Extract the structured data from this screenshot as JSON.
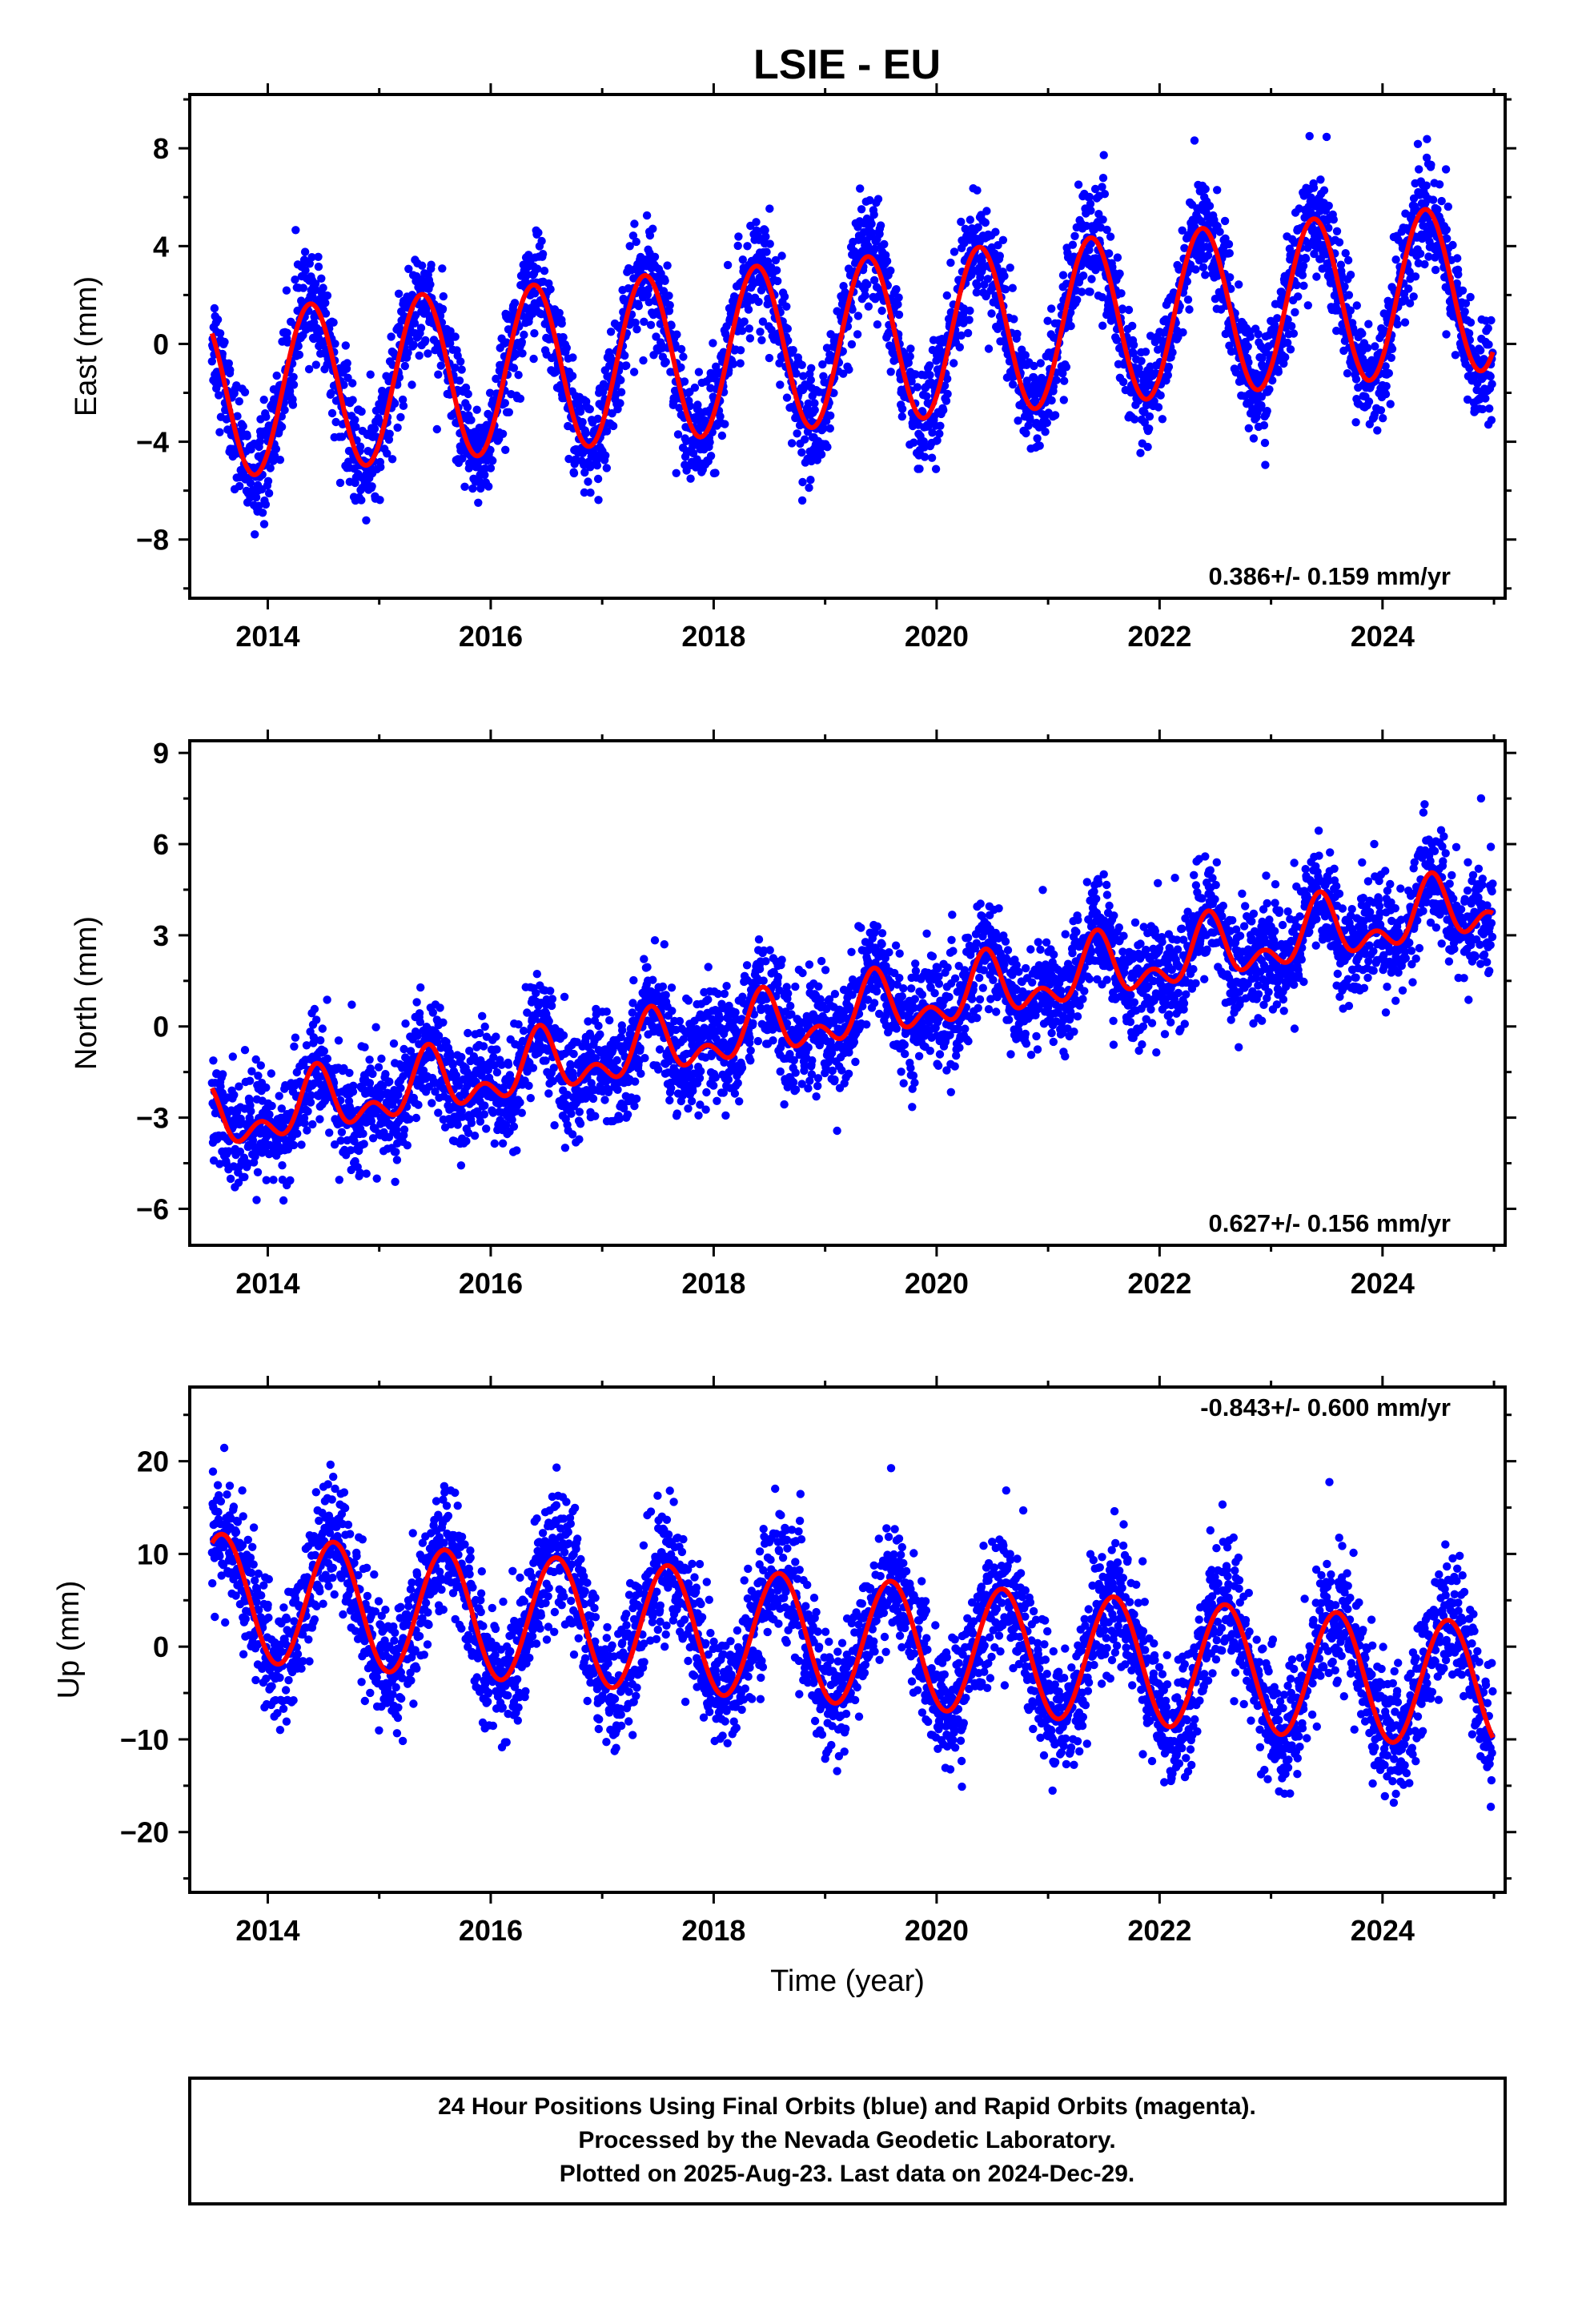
{
  "title": "LSIE - EU",
  "chart_data": [
    {
      "type": "scatter",
      "ylabel": "East (mm)",
      "xlabel": "",
      "xlim": [
        2013.3,
        2025.1
      ],
      "ylim": [
        -10.4,
        10.2
      ],
      "xticks": [
        2014,
        2016,
        2018,
        2020,
        2022,
        2024
      ],
      "xtick_labels": [
        "2014",
        "2016",
        "2018",
        "2020",
        "2022",
        "2024"
      ],
      "yticks": [
        -8,
        -4,
        0,
        4,
        8
      ],
      "ytick_labels": [
        "−8",
        "−4",
        "0",
        "4",
        "8"
      ],
      "rate_label": "0.386+/- 0.159 mm/yr",
      "point_color": "#0000ff",
      "fit_color": "#ff0000",
      "model": {
        "offset": -2.1,
        "trend": 0.386,
        "annual_amp": 3.4,
        "annual_phase_doy": 140,
        "semi_amp": 0.0,
        "noise": 1.1
      },
      "series": [
        {
          "kind": "points",
          "x_start": 2013.5,
          "x_end": 2024.99
        },
        {
          "kind": "fit",
          "x_start": 2013.5,
          "x_end": 2024.99
        }
      ]
    },
    {
      "type": "scatter",
      "ylabel": "North (mm)",
      "xlabel": "",
      "xlim": [
        2013.3,
        2025.1
      ],
      "ylim": [
        -7.2,
        9.4
      ],
      "xticks": [
        2014,
        2016,
        2018,
        2020,
        2022,
        2024
      ],
      "xtick_labels": [
        "2014",
        "2016",
        "2018",
        "2020",
        "2022",
        "2024"
      ],
      "yticks": [
        -6,
        -3,
        0,
        3,
        6,
        9
      ],
      "ytick_labels": [
        "−6",
        "−3",
        "0",
        "3",
        "6",
        "9"
      ],
      "rate_label": "0.627+/- 0.156 mm/yr",
      "point_color": "#0000ff",
      "fit_color": "#ff0000",
      "model": {
        "offset": -3.2,
        "trend": 0.627,
        "annual_amp": 0.8,
        "annual_phase_doy": 160,
        "semi_amp": 0.6,
        "noise": 0.9
      },
      "series": [
        {
          "kind": "points",
          "x_start": 2013.5,
          "x_end": 2024.99
        },
        {
          "kind": "fit",
          "x_start": 2013.5,
          "x_end": 2024.99
        }
      ]
    },
    {
      "type": "scatter",
      "ylabel": "Up (mm)",
      "xlabel": "Time (year)",
      "xlim": [
        2013.3,
        2025.1
      ],
      "ylim": [
        -26.5,
        28.0
      ],
      "xticks": [
        2014,
        2016,
        2018,
        2020,
        2022,
        2024
      ],
      "xtick_labels": [
        "2014",
        "2016",
        "2018",
        "2020",
        "2022",
        "2024"
      ],
      "yticks": [
        -20,
        -10,
        0,
        10,
        20
      ],
      "ytick_labels": [
        "−20",
        "−10",
        "0",
        "10",
        "20"
      ],
      "rate_label": "-0.843+/- 0.600 mm/yr",
      "point_color": "#0000ff",
      "fit_color": "#ff0000",
      "model": {
        "offset": 5.4,
        "trend": -0.843,
        "annual_amp": 6.8,
        "annual_phase_doy": 215,
        "semi_amp": 0.0,
        "noise": 3.4
      },
      "series": [
        {
          "kind": "points",
          "x_start": 2013.5,
          "x_end": 2024.99
        },
        {
          "kind": "fit",
          "x_start": 2013.5,
          "x_end": 2024.99
        }
      ]
    }
  ],
  "footer": {
    "line1": "24 Hour Positions Using Final Orbits (blue) and Rapid Orbits (magenta).",
    "line2": "Processed by the Nevada Geodetic Laboratory.",
    "line3": "Plotted on 2025-Aug-23. Last data on 2024-Dec-29."
  }
}
